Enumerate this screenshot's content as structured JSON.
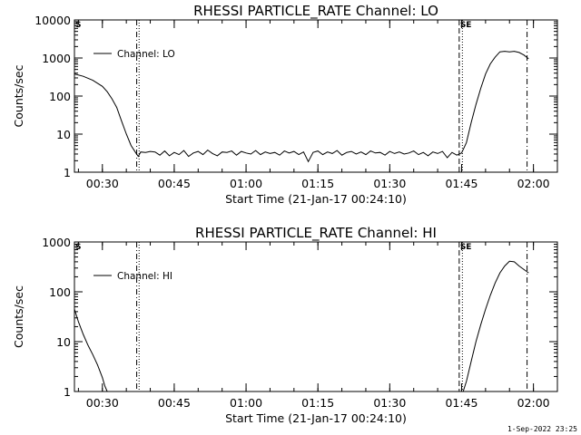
{
  "chart_data": [
    {
      "type": "line",
      "title": "RHESSI PARTICLE_RATE Channel: LO",
      "xlabel": "Start Time (21-Jan-17 00:24:10)",
      "ylabel": "Counts/sec",
      "y_scale": "log",
      "ylim": [
        1,
        10000
      ],
      "xlim": [
        "00:24:10",
        "02:05:00"
      ],
      "x_tick_labels": [
        "00:30",
        "00:45",
        "01:00",
        "01:15",
        "01:30",
        "01:45",
        "02:00"
      ],
      "y_tick_labels": [
        "1",
        "10",
        "100",
        "1000",
        "10000"
      ],
      "legend": {
        "entries": [
          "Channel: LO"
        ],
        "placement": "top-left"
      },
      "grid": false,
      "flags": {
        "left": "S",
        "right": "SE"
      },
      "vlines": [
        {
          "time": "00:37:10",
          "style": "dashdot"
        },
        {
          "time": "00:37:40",
          "style": "dotted"
        },
        {
          "time": "01:44:30",
          "style": "dashed"
        },
        {
          "time": "01:45:10",
          "style": "dotted"
        },
        {
          "time": "01:58:40",
          "style": "dashdot"
        }
      ],
      "series": [
        {
          "name": "Channel: LO",
          "x": [
            "00:24:10",
            "00:26:00",
            "00:28:00",
            "00:30:00",
            "00:31:00",
            "00:32:00",
            "00:33:00",
            "00:34:00",
            "00:35:00",
            "00:36:00",
            "00:37:00",
            "00:37:30",
            "00:38:00",
            "00:39:00",
            "00:40:00",
            "00:41:00",
            "00:42:00",
            "00:43:00",
            "00:44:00",
            "00:45:00",
            "00:46:00",
            "00:47:00",
            "00:48:00",
            "00:49:00",
            "00:50:00",
            "00:51:00",
            "00:52:00",
            "00:53:00",
            "00:54:00",
            "00:55:00",
            "00:56:00",
            "00:57:00",
            "00:58:00",
            "00:59:00",
            "01:00:00",
            "01:01:00",
            "01:02:00",
            "01:03:00",
            "01:04:00",
            "01:05:00",
            "01:06:00",
            "01:07:00",
            "01:08:00",
            "01:09:00",
            "01:10:00",
            "01:11:00",
            "01:12:00",
            "01:13:00",
            "01:14:00",
            "01:15:00",
            "01:16:00",
            "01:17:00",
            "01:18:00",
            "01:19:00",
            "01:20:00",
            "01:21:00",
            "01:22:00",
            "01:23:00",
            "01:24:00",
            "01:25:00",
            "01:26:00",
            "01:27:00",
            "01:28:00",
            "01:29:00",
            "01:30:00",
            "01:31:00",
            "01:32:00",
            "01:33:00",
            "01:34:00",
            "01:35:00",
            "01:36:00",
            "01:37:00",
            "01:38:00",
            "01:39:00",
            "01:40:00",
            "01:41:00",
            "01:42:00",
            "01:43:00",
            "01:44:00",
            "01:45:00",
            "01:46:00",
            "01:47:00",
            "01:48:00",
            "01:49:00",
            "01:50:00",
            "01:51:00",
            "01:52:00",
            "01:53:00",
            "01:54:00",
            "01:55:00",
            "01:56:00",
            "01:57:00",
            "01:58:00",
            "01:59:00"
          ],
          "y": [
            380,
            330,
            260,
            180,
            130,
            85,
            50,
            22,
            10,
            5,
            3.2,
            2.6,
            3.4,
            3.3,
            3.5,
            3.4,
            2.8,
            3.6,
            2.7,
            3.3,
            2.9,
            3.7,
            2.6,
            3.2,
            3.5,
            2.9,
            3.8,
            3.1,
            2.7,
            3.4,
            3.3,
            3.6,
            2.8,
            3.5,
            3.2,
            3.0,
            3.7,
            2.9,
            3.4,
            3.1,
            3.3,
            2.8,
            3.6,
            3.2,
            3.5,
            2.9,
            3.4,
            1.9,
            3.3,
            3.6,
            2.9,
            3.4,
            3.1,
            3.7,
            2.8,
            3.3,
            3.5,
            3.0,
            3.4,
            2.9,
            3.6,
            3.2,
            3.3,
            2.8,
            3.5,
            3.1,
            3.4,
            3.0,
            3.2,
            3.6,
            2.9,
            3.3,
            2.7,
            3.4,
            3.1,
            3.5,
            2.4,
            3.3,
            2.8,
            3.2,
            6,
            20,
            60,
            160,
            380,
            700,
            1050,
            1450,
            1500,
            1450,
            1500,
            1400,
            1200,
            950
          ]
        }
      ]
    },
    {
      "type": "line",
      "title": "RHESSI PARTICLE_RATE Channel: HI",
      "xlabel": "Start Time (21-Jan-17 00:24:10)",
      "ylabel": "Counts/sec",
      "y_scale": "log",
      "ylim": [
        1,
        1000
      ],
      "xlim": [
        "00:24:10",
        "02:05:00"
      ],
      "x_tick_labels": [
        "00:30",
        "00:45",
        "01:00",
        "01:15",
        "01:30",
        "01:45",
        "02:00"
      ],
      "y_tick_labels": [
        "1",
        "10",
        "100",
        "1000"
      ],
      "legend": {
        "entries": [
          "Channel: HI"
        ],
        "placement": "top-left"
      },
      "grid": false,
      "flags": {
        "left": "S",
        "right": "SE"
      },
      "vlines": [
        {
          "time": "00:37:10",
          "style": "dashdot"
        },
        {
          "time": "00:37:40",
          "style": "dotted"
        },
        {
          "time": "01:44:30",
          "style": "dashed"
        },
        {
          "time": "01:45:10",
          "style": "dotted"
        },
        {
          "time": "01:58:40",
          "style": "dashdot"
        }
      ],
      "series": [
        {
          "name": "Channel: HI",
          "x": [
            "00:24:10",
            "00:25:00",
            "00:26:00",
            "00:27:00",
            "00:28:00",
            "00:29:00",
            "00:30:00",
            "00:30:30",
            "00:31:00",
            "01:45:20",
            "01:46:00",
            "01:47:00",
            "01:48:00",
            "01:49:00",
            "01:50:00",
            "01:51:00",
            "01:52:00",
            "01:53:00",
            "01:54:00",
            "01:55:00",
            "01:56:00",
            "01:57:00",
            "01:58:00",
            "01:59:00"
          ],
          "y": [
            45,
            25,
            14,
            8.5,
            5.5,
            3.4,
            1.9,
            1.3,
            1.0,
            1.0,
            1.6,
            4,
            10,
            22,
            45,
            85,
            150,
            240,
            330,
            410,
            400,
            330,
            280,
            240
          ]
        }
      ]
    }
  ],
  "footer": {
    "date_stamp": "1-Sep-2022 23:25"
  }
}
